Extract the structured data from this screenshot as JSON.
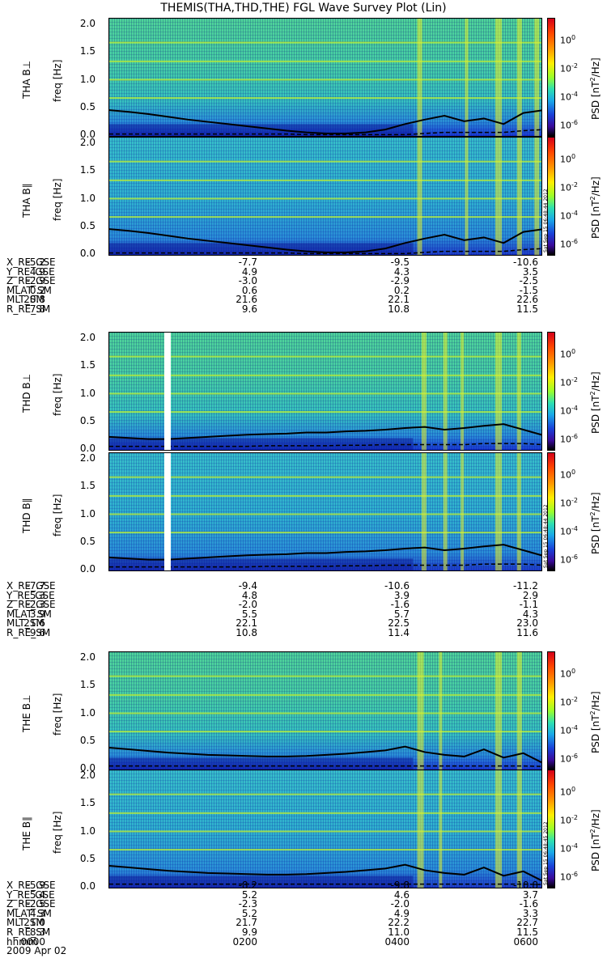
{
  "title": "THEMIS(THA,THD,THE) FGL Wave Survey Plot (Lin)",
  "colorbar": {
    "ticks": [
      "10",
      "10",
      "10",
      "10"
    ],
    "exponents": [
      "0",
      "-2",
      "-4",
      "-6"
    ],
    "label_prefix": "PSD [nT",
    "label_sup": "2",
    "label_suffix": "/Hz]"
  },
  "freq_unit_label": "freq [Hz]",
  "freq_ticks": [
    "2.0",
    "1.5",
    "1.0",
    "0.5",
    "0.0"
  ],
  "stamps": [
    "Sat Sep 15 06:48:44 2012",
    "Sat Sep 15 06:48:44 2012",
    "Sat Sep 15 06:48:45 2012"
  ],
  "chart_data": [
    {
      "type": "heatmap",
      "name": "THA B⊥",
      "probe": "THA",
      "panel_label": "THA B⊥",
      "ylabel": "freq [Hz]",
      "ylim": [
        0,
        2.0
      ],
      "colorbar_range": [
        1e-06,
        10
      ],
      "colorbar_label": "PSD [nT²/Hz]",
      "black_line_hz": [
        0.45,
        0.42,
        0.38,
        0.33,
        0.28,
        0.24,
        0.2,
        0.16,
        0.12,
        0.08,
        0.05,
        0.03,
        0.03,
        0.05,
        0.1,
        0.2,
        0.28,
        0.35,
        0.25,
        0.3,
        0.2,
        0.4,
        0.45
      ],
      "dashed_line_hz": [
        0.02,
        0.02,
        0.02,
        0.02,
        0.02,
        0.02,
        0.02,
        0.02,
        0.02,
        0.02,
        0.01,
        0.01,
        0.01,
        0.01,
        0.01,
        0.01,
        0.03,
        0.05,
        0.05,
        0.05,
        0.05,
        0.08,
        0.1
      ]
    },
    {
      "type": "heatmap",
      "name": "THA B∥",
      "probe": "THA",
      "panel_label": "THA B∥",
      "ylabel": "freq [Hz]",
      "ylim": [
        0,
        2.0
      ],
      "colorbar_range": [
        1e-06,
        10
      ],
      "colorbar_label": "PSD [nT²/Hz]",
      "black_line_hz": [
        0.45,
        0.42,
        0.38,
        0.33,
        0.28,
        0.24,
        0.2,
        0.16,
        0.12,
        0.08,
        0.05,
        0.03,
        0.03,
        0.05,
        0.1,
        0.2,
        0.28,
        0.35,
        0.25,
        0.3,
        0.2,
        0.4,
        0.45
      ],
      "dashed_line_hz": [
        0.02,
        0.02,
        0.02,
        0.02,
        0.02,
        0.02,
        0.02,
        0.02,
        0.02,
        0.02,
        0.01,
        0.01,
        0.01,
        0.01,
        0.01,
        0.01,
        0.03,
        0.05,
        0.05,
        0.05,
        0.05,
        0.08,
        0.1
      ]
    },
    {
      "type": "heatmap",
      "name": "THD B⊥",
      "probe": "THD",
      "panel_label": "THD B⊥",
      "ylabel": "freq [Hz]",
      "ylim": [
        0,
        2.0
      ],
      "colorbar_range": [
        1e-06,
        10
      ],
      "colorbar_label": "PSD [nT²/Hz]",
      "black_line_hz": [
        0.22,
        0.2,
        0.18,
        0.18,
        0.2,
        0.22,
        0.24,
        0.26,
        0.27,
        0.28,
        0.3,
        0.3,
        0.32,
        0.33,
        0.35,
        0.38,
        0.4,
        0.35,
        0.38,
        0.42,
        0.45,
        0.35,
        0.25
      ],
      "dashed_line_hz": [
        0.05,
        0.05,
        0.05,
        0.05,
        0.05,
        0.05,
        0.05,
        0.05,
        0.06,
        0.06,
        0.06,
        0.06,
        0.07,
        0.07,
        0.08,
        0.08,
        0.08,
        0.08,
        0.08,
        0.1,
        0.1,
        0.1,
        0.08
      ]
    },
    {
      "type": "heatmap",
      "name": "THD B∥",
      "probe": "THD",
      "panel_label": "THD B∥",
      "ylabel": "freq [Hz]",
      "ylim": [
        0,
        2.0
      ],
      "colorbar_range": [
        1e-06,
        10
      ],
      "colorbar_label": "PSD [nT²/Hz]",
      "black_line_hz": [
        0.22,
        0.2,
        0.18,
        0.18,
        0.2,
        0.22,
        0.24,
        0.26,
        0.27,
        0.28,
        0.3,
        0.3,
        0.32,
        0.33,
        0.35,
        0.38,
        0.4,
        0.35,
        0.38,
        0.42,
        0.45,
        0.35,
        0.25
      ],
      "dashed_line_hz": [
        0.05,
        0.05,
        0.05,
        0.05,
        0.05,
        0.05,
        0.05,
        0.05,
        0.06,
        0.06,
        0.06,
        0.06,
        0.07,
        0.07,
        0.08,
        0.08,
        0.08,
        0.08,
        0.08,
        0.1,
        0.1,
        0.1,
        0.08
      ]
    },
    {
      "type": "heatmap",
      "name": "THE B⊥",
      "probe": "THE",
      "panel_label": "THE B⊥",
      "ylabel": "freq [Hz]",
      "ylim": [
        0,
        2.0
      ],
      "colorbar_range": [
        1e-06,
        10
      ],
      "colorbar_label": "PSD [nT²/Hz]",
      "black_line_hz": [
        0.38,
        0.35,
        0.32,
        0.29,
        0.27,
        0.25,
        0.24,
        0.23,
        0.22,
        0.22,
        0.23,
        0.25,
        0.27,
        0.3,
        0.33,
        0.4,
        0.3,
        0.25,
        0.22,
        0.35,
        0.2,
        0.28,
        0.1
      ],
      "dashed_line_hz": [
        0.05,
        0.05,
        0.05,
        0.05,
        0.05,
        0.05,
        0.05,
        0.05,
        0.05,
        0.05,
        0.05,
        0.05,
        0.05,
        0.05,
        0.05,
        0.05,
        0.05,
        0.05,
        0.05,
        0.05,
        0.05,
        0.05,
        0.04
      ]
    },
    {
      "type": "heatmap",
      "name": "THE B∥",
      "probe": "THE",
      "panel_label": "THE B∥",
      "ylabel": "freq [Hz]",
      "ylim": [
        0,
        2.0
      ],
      "colorbar_range": [
        1e-06,
        10
      ],
      "colorbar_label": "PSD [nT²/Hz]",
      "black_line_hz": [
        0.38,
        0.35,
        0.32,
        0.29,
        0.27,
        0.25,
        0.24,
        0.23,
        0.22,
        0.22,
        0.23,
        0.25,
        0.27,
        0.3,
        0.33,
        0.4,
        0.3,
        0.25,
        0.22,
        0.35,
        0.2,
        0.28,
        0.1
      ],
      "dashed_line_hz": [
        0.05,
        0.05,
        0.05,
        0.05,
        0.05,
        0.05,
        0.05,
        0.05,
        0.05,
        0.05,
        0.05,
        0.05,
        0.05,
        0.05,
        0.05,
        0.05,
        0.05,
        0.05,
        0.05,
        0.05,
        0.05,
        0.05,
        0.04
      ]
    }
  ],
  "ephemeris": [
    {
      "labels": [
        "X_RE_GSE",
        "Y_RE_GSE",
        "Z_RE_GSE",
        "MLAT_SM",
        "MLT_SM",
        "R_RE_SM"
      ],
      "columns": [
        [
          "-5.2",
          "4.9",
          "-2.9",
          "0.2",
          "20.8",
          "7.8"
        ],
        [
          "-7.7",
          "4.9",
          "-3.0",
          "0.6",
          "21.6",
          "9.6"
        ],
        [
          "-9.5",
          "4.3",
          "-2.9",
          "0.2",
          "22.1",
          "10.8"
        ],
        [
          "-10.6",
          "3.5",
          "-2.5",
          "-1.5",
          "22.6",
          "11.5"
        ]
      ]
    },
    {
      "labels": [
        "X_RE_GSE",
        "Y_RE_GSE",
        "Z_RE_GSE",
        "MLAT_SM",
        "MLT_SM",
        "R_RE_SM"
      ],
      "columns": [
        [
          "-7.7",
          "5.3",
          "-2.3",
          "3.9",
          "21.6",
          "9.6"
        ],
        [
          "-9.4",
          "4.8",
          "-2.0",
          "5.5",
          "22.1",
          "10.8"
        ],
        [
          "-10.6",
          "3.9",
          "-1.6",
          "5.7",
          "22.5",
          "11.4"
        ],
        [
          "-11.2",
          "2.9",
          "-1.1",
          "4.3",
          "23.0",
          "11.6"
        ]
      ]
    },
    {
      "labels": [
        "X_RE_GSE",
        "Y_RE_GSE",
        "Z_RE_GSE",
        "MLAT_SM",
        "MLT_SM",
        "R_RE_SM",
        "hhmm"
      ],
      "columns": [
        [
          "-5.9",
          "5.4",
          "-2.5",
          "4.3",
          "21.0",
          "8.3",
          "0000"
        ],
        [
          "-8.2",
          "5.2",
          "-2.3",
          "5.2",
          "21.7",
          "9.9",
          "0200"
        ],
        [
          "-9.8",
          "4.6",
          "-2.0",
          "4.9",
          "22.2",
          "11.0",
          "0400"
        ],
        [
          "-10.8",
          "3.7",
          "-1.6",
          "3.3",
          "22.7",
          "11.5",
          "0600"
        ]
      ]
    }
  ],
  "date_label": "2009 Apr 02"
}
